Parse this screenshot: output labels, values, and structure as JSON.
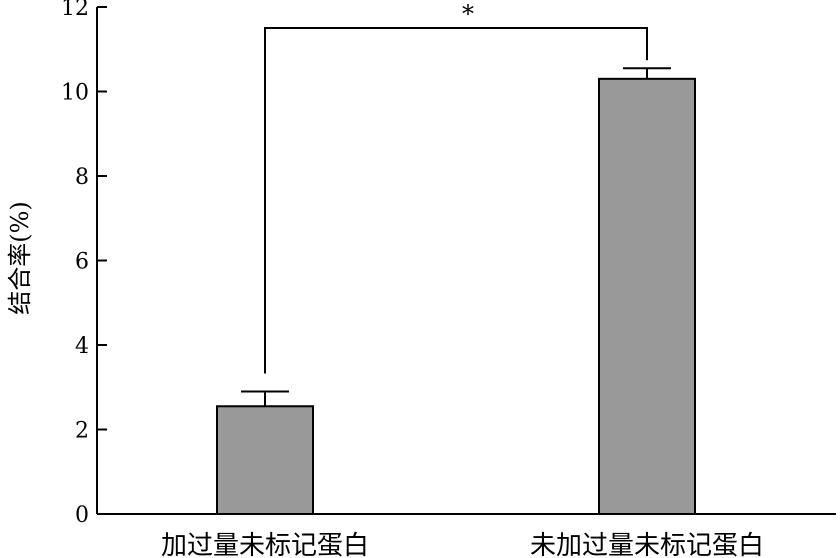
{
  "chart_data": {
    "type": "bar",
    "categories": [
      "加过量未标记蛋白",
      "未加过量未标记蛋白"
    ],
    "values": [
      2.55,
      10.3
    ],
    "errors": [
      0.35,
      0.25
    ],
    "title": "",
    "xlabel": "",
    "ylabel": "结合率(%)",
    "ylim": [
      0,
      12
    ],
    "yticks": [
      0,
      2,
      4,
      6,
      8,
      10,
      12
    ],
    "grid": false,
    "bar_color": "#999999",
    "significance": {
      "between": [
        0,
        1
      ],
      "label": "*"
    }
  }
}
